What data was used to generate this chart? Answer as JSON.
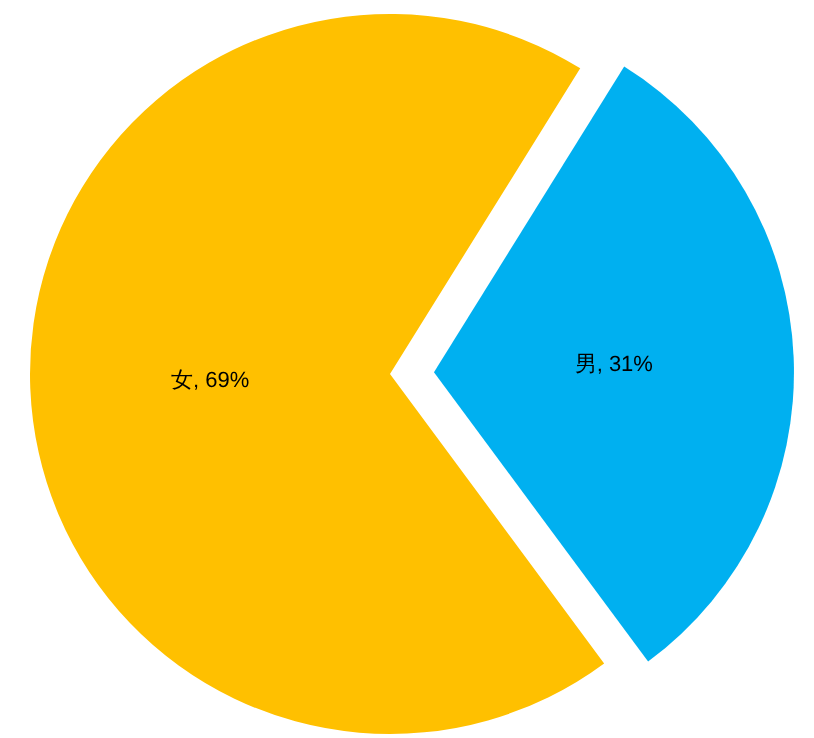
{
  "chart_data": {
    "type": "pie",
    "categories": [
      "女",
      "男"
    ],
    "values": [
      69,
      31
    ],
    "colors": [
      "#ffc000",
      "#00b0f0"
    ],
    "value_labels": [
      ", 69%",
      ", 31%"
    ]
  }
}
